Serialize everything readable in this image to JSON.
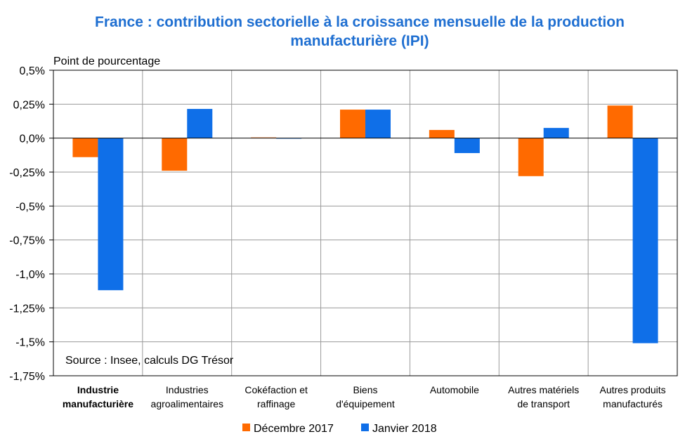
{
  "chart_data": {
    "type": "bar",
    "title_lines": [
      "France : contribution sectorielle à la croissance mensuelle de la production",
      "manufacturière (IPI)"
    ],
    "ylabel": "Point de pourcentage",
    "source": "Source : Insee, calculs DG Trésor",
    "ylim": [
      -1.75,
      0.5
    ],
    "yticks": [
      0.5,
      0.25,
      0.0,
      -0.25,
      -0.5,
      -0.75,
      -1.0,
      -1.25,
      -1.5,
      -1.75
    ],
    "ytick_labels": [
      "0,5%",
      "0,25%",
      "0,0%",
      "-0,25%",
      "-0,5%",
      "-0,75%",
      "-1,0%",
      "-1,25%",
      "-1,5%",
      "-1,75%"
    ],
    "categories": [
      {
        "lines": [
          "Industrie",
          "manufacturière"
        ],
        "bold": true
      },
      {
        "lines": [
          "Industries",
          "agroalimentaires"
        ],
        "bold": false
      },
      {
        "lines": [
          "Cokéfaction et",
          "raffinage"
        ],
        "bold": false
      },
      {
        "lines": [
          "Biens",
          "d'équipement"
        ],
        "bold": false
      },
      {
        "lines": [
          "Automobile"
        ],
        "bold": false
      },
      {
        "lines": [
          "Autres matériels",
          "de transport"
        ],
        "bold": false
      },
      {
        "lines": [
          "Autres produits",
          "manufacturés"
        ],
        "bold": false
      }
    ],
    "series": [
      {
        "name": "Décembre 2017",
        "color": "#ff6a00",
        "values": [
          -0.14,
          -0.24,
          0.005,
          0.21,
          0.06,
          -0.28,
          0.24
        ]
      },
      {
        "name": "Janvier 2018",
        "color": "#0f6fe8",
        "values": [
          -1.12,
          0.215,
          0.0,
          0.21,
          -0.11,
          0.075,
          -1.51
        ]
      }
    ],
    "grid": true,
    "legend_position": "bottom-center"
  }
}
